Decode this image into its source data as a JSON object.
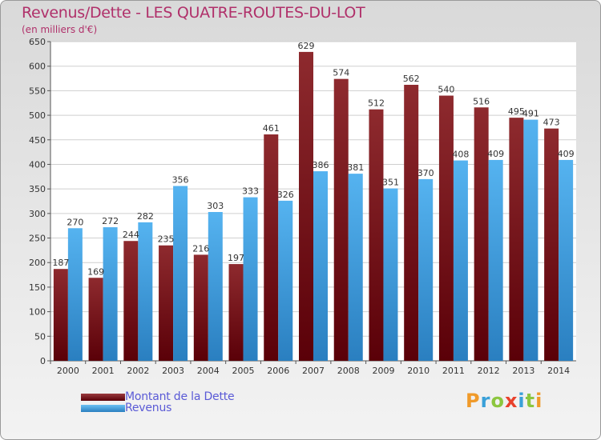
{
  "header": {
    "title": "Revenus/Dette - LES QUATRE-ROUTES-DU-LOT",
    "subtitle": "(en milliers d'€)"
  },
  "legend": {
    "items": [
      {
        "label": "Montant de la Dette",
        "color": "#7a0e14"
      },
      {
        "label": "Revenus",
        "color": "#3d9ee0"
      }
    ]
  },
  "logo": {
    "text": "Proxiti",
    "letter_colors": [
      "#f09a2a",
      "#3aa0d8",
      "#8cc63f",
      "#e8412c",
      "#3aa0d8",
      "#8cc63f",
      "#f09a2a"
    ]
  },
  "chart_data": {
    "type": "bar",
    "categories": [
      "2000",
      "2001",
      "2002",
      "2003",
      "2004",
      "2005",
      "2006",
      "2007",
      "2008",
      "2009",
      "2010",
      "2011",
      "2012",
      "2013",
      "2014"
    ],
    "series": [
      {
        "name": "Montant de la Dette",
        "color": "#7a0e14",
        "values": [
          187,
          169,
          244,
          235,
          216,
          197,
          461,
          629,
          574,
          512,
          562,
          540,
          516,
          495,
          473
        ]
      },
      {
        "name": "Revenus",
        "color": "#3d9ee0",
        "values": [
          270,
          272,
          282,
          356,
          303,
          333,
          326,
          386,
          381,
          351,
          370,
          408,
          409,
          491,
          409
        ]
      }
    ],
    "ylim": [
      0,
      650
    ],
    "yticks": [
      0,
      50,
      100,
      150,
      200,
      250,
      300,
      350,
      400,
      450,
      500,
      550,
      600,
      650
    ],
    "grid": true,
    "title": "Revenus/Dette - LES QUATRE-ROUTES-DU-LOT",
    "ylabel": "(en milliers d'€)",
    "xlabel": ""
  }
}
